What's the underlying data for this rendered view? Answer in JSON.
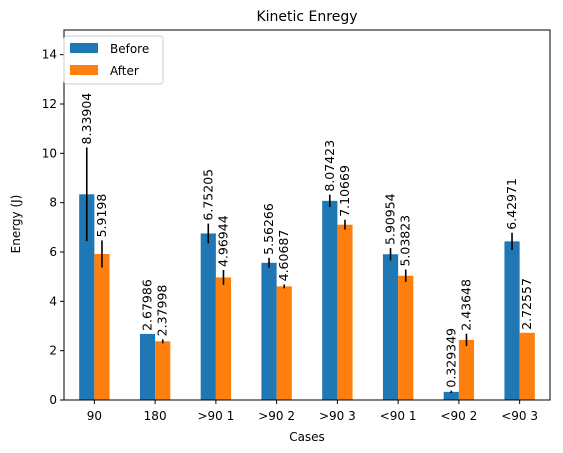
{
  "chart_data": {
    "type": "bar",
    "title": "Kinetic Enregy",
    "xlabel": "Cases",
    "ylabel": "Energy (J)",
    "ylim": [
      0,
      15
    ],
    "yticks": [
      0,
      2,
      4,
      6,
      8,
      10,
      12,
      14
    ],
    "grid": false,
    "legend_position": "top-left",
    "categories": [
      "90",
      "180",
      ">90 1",
      ">90 2",
      ">90 3",
      "<90 1",
      "<90 2",
      "<90 3"
    ],
    "series": [
      {
        "name": "Before",
        "color": "#1f77b4",
        "values": [
          8.33904,
          2.67986,
          6.75205,
          5.56266,
          8.07423,
          5.90954,
          0.329349,
          6.42971
        ],
        "labels": [
          "8.33904",
          "2.67986",
          "6.75205",
          "5.56266",
          "8.07423",
          "5.90954",
          "0.329349",
          "6.42971"
        ],
        "errors": [
          1.9,
          0.0,
          0.4,
          0.2,
          0.25,
          0.25,
          0.05,
          0.35
        ]
      },
      {
        "name": "After",
        "color": "#ff7f0e",
        "values": [
          5.9198,
          2.37998,
          4.96944,
          4.60687,
          7.10669,
          5.03823,
          2.43648,
          2.72557
        ],
        "labels": [
          "5.9198",
          "2.37998",
          "4.96944",
          "4.60687",
          "7.10669",
          "5.03823",
          "2.43648",
          "2.72557"
        ],
        "errors": [
          0.55,
          0.08,
          0.3,
          0.08,
          0.2,
          0.25,
          0.25,
          0.0
        ]
      }
    ]
  }
}
